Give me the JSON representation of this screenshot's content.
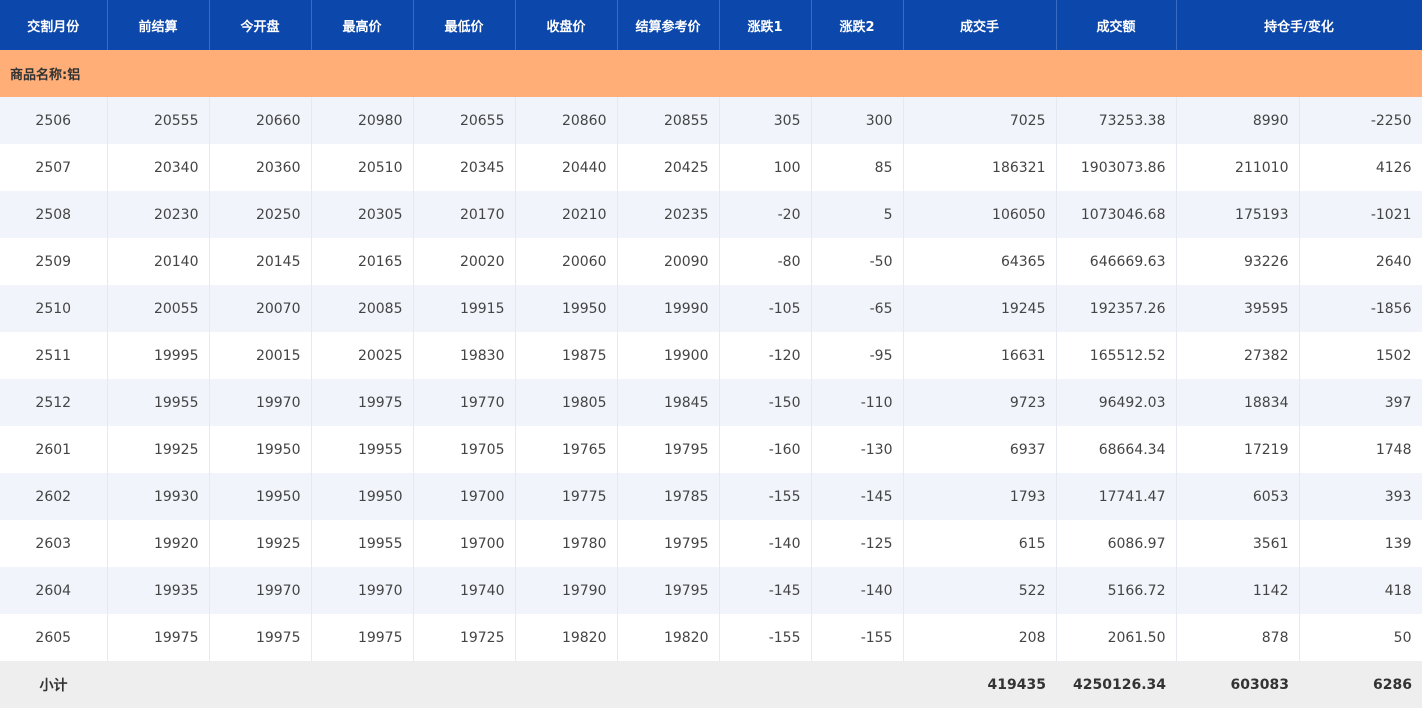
{
  "table": {
    "headers": [
      "交割月份",
      "前结算",
      "今开盘",
      "最高价",
      "最低价",
      "收盘价",
      "结算参考价",
      "涨跌1",
      "涨跌2",
      "成交手",
      "成交额",
      "持仓手/变化"
    ],
    "section": "商品名称:铝",
    "rows": [
      [
        "2506",
        "20555",
        "20660",
        "20980",
        "20655",
        "20860",
        "20855",
        "305",
        "300",
        "7025",
        "73253.38",
        "8990",
        "-2250"
      ],
      [
        "2507",
        "20340",
        "20360",
        "20510",
        "20345",
        "20440",
        "20425",
        "100",
        "85",
        "186321",
        "1903073.86",
        "211010",
        "4126"
      ],
      [
        "2508",
        "20230",
        "20250",
        "20305",
        "20170",
        "20210",
        "20235",
        "-20",
        "5",
        "106050",
        "1073046.68",
        "175193",
        "-1021"
      ],
      [
        "2509",
        "20140",
        "20145",
        "20165",
        "20020",
        "20060",
        "20090",
        "-80",
        "-50",
        "64365",
        "646669.63",
        "93226",
        "2640"
      ],
      [
        "2510",
        "20055",
        "20070",
        "20085",
        "19915",
        "19950",
        "19990",
        "-105",
        "-65",
        "19245",
        "192357.26",
        "39595",
        "-1856"
      ],
      [
        "2511",
        "19995",
        "20015",
        "20025",
        "19830",
        "19875",
        "19900",
        "-120",
        "-95",
        "16631",
        "165512.52",
        "27382",
        "1502"
      ],
      [
        "2512",
        "19955",
        "19970",
        "19975",
        "19770",
        "19805",
        "19845",
        "-150",
        "-110",
        "9723",
        "96492.03",
        "18834",
        "397"
      ],
      [
        "2601",
        "19925",
        "19950",
        "19955",
        "19705",
        "19765",
        "19795",
        "-160",
        "-130",
        "6937",
        "68664.34",
        "17219",
        "1748"
      ],
      [
        "2602",
        "19930",
        "19950",
        "19950",
        "19700",
        "19775",
        "19785",
        "-155",
        "-145",
        "1793",
        "17741.47",
        "6053",
        "393"
      ],
      [
        "2603",
        "19920",
        "19925",
        "19955",
        "19700",
        "19780",
        "19795",
        "-140",
        "-125",
        "615",
        "6086.97",
        "3561",
        "139"
      ],
      [
        "2604",
        "19935",
        "19970",
        "19970",
        "19740",
        "19790",
        "19795",
        "-145",
        "-140",
        "522",
        "5166.72",
        "1142",
        "418"
      ],
      [
        "2605",
        "19975",
        "19975",
        "19975",
        "19725",
        "19820",
        "19820",
        "-155",
        "-155",
        "208",
        "2061.50",
        "878",
        "50"
      ]
    ],
    "subtotal": {
      "label": "小计",
      "volume": "419435",
      "turnover": "4250126.34",
      "open_interest": "603083",
      "change": "6286"
    }
  }
}
